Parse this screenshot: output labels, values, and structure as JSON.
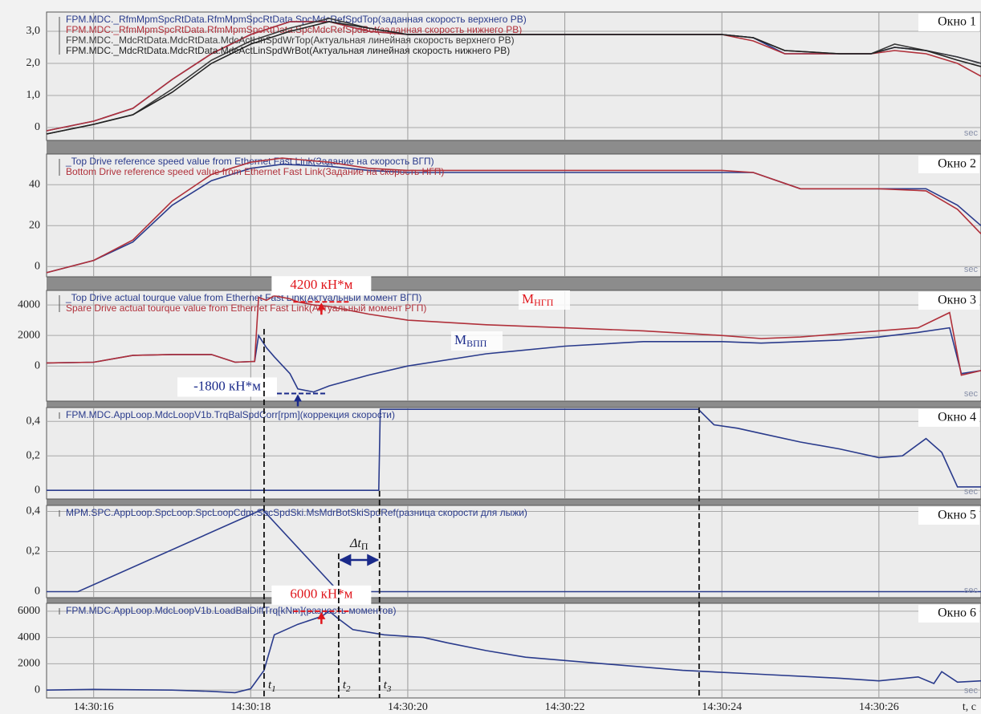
{
  "x_axis": {
    "label": "t, c",
    "xlim": [
      15.4,
      27.3
    ],
    "xticks": [
      {
        "value": 16,
        "label": "14:30:16"
      },
      {
        "value": 18,
        "label": "14:30:18"
      },
      {
        "value": 20,
        "label": "14:30:20"
      },
      {
        "value": 22,
        "label": "14:30:22"
      },
      {
        "value": 24,
        "label": "14:30:24"
      },
      {
        "value": 26,
        "label": "14:30:26"
      }
    ]
  },
  "markers": [
    {
      "x": 18.17,
      "label": "t",
      "sub": "1"
    },
    {
      "x": 19.12,
      "label": "t",
      "sub": "2"
    },
    {
      "x": 19.64,
      "label": "t",
      "sub": "3"
    },
    {
      "x": 23.71
    }
  ],
  "interval": {
    "label": "Δt",
    "sub": "П"
  },
  "chart_data": [
    {
      "type": "line",
      "window": "Окно 1",
      "x_unit": "sec",
      "ylim": [
        -0.4,
        3.6
      ],
      "yticks": [
        0,
        {
          "value": 1,
          "label": "1,0"
        },
        {
          "value": 2,
          "label": "2,0"
        },
        {
          "value": 3,
          "label": "3,0"
        }
      ],
      "x": [
        15.4,
        16,
        16.5,
        17,
        17.5,
        18,
        18.5,
        19,
        19.5,
        20,
        22,
        24,
        24.4,
        24.8,
        25.5,
        25.9,
        26.2,
        26.6,
        27,
        27.3
      ],
      "series": [
        {
          "name": "FPM.MDC._RfmMpmSpcRtData.RfmMpmSpcRtData.SpcMdcRefSpdTop(заданная скорость верхнего РВ)",
          "color": "#2a3b8c",
          "values": [
            -0.1,
            0.2,
            0.6,
            1.5,
            2.3,
            2.9,
            3.3,
            3.3,
            3.0,
            2.9,
            2.9,
            2.9,
            2.8,
            2.3,
            2.3,
            2.3,
            2.5,
            2.4,
            2.2,
            2.0
          ]
        },
        {
          "name": "FPM.MDC._RfmMpmSpcRtData.RfmMpmSpcRtData.SpcMdcRefSpdBot(заданная скорость нижнего РВ)",
          "color": "#b0303a",
          "values": [
            -0.1,
            0.2,
            0.6,
            1.5,
            2.3,
            2.9,
            3.3,
            3.3,
            3.0,
            2.9,
            2.9,
            2.9,
            2.7,
            2.3,
            2.3,
            2.3,
            2.4,
            2.3,
            2.0,
            1.6
          ]
        },
        {
          "name": "FPM.MDC._MdcRtData.MdcRtData.MdcActLinSpdWrTop(Актуальная линейная скорость верхнего РВ)",
          "color": "#3a3a3a",
          "values": [
            -0.2,
            0.1,
            0.4,
            1.2,
            2.1,
            2.7,
            3.1,
            3.4,
            3.1,
            2.9,
            2.9,
            2.9,
            2.8,
            2.4,
            2.3,
            2.3,
            2.6,
            2.4,
            2.2,
            2.0
          ]
        },
        {
          "name": "FPM.MDC._MdcRtData.MdcRtData.MdcActLinSpdWrBot(Актуальная линейная скорость нижнего РВ)",
          "color": "#222222",
          "values": [
            -0.2,
            0.1,
            0.4,
            1.1,
            2.0,
            2.6,
            3.0,
            3.3,
            3.1,
            2.9,
            2.9,
            2.9,
            2.8,
            2.4,
            2.3,
            2.3,
            2.5,
            2.4,
            2.1,
            1.9
          ]
        }
      ]
    },
    {
      "type": "line",
      "window": "Окно 2",
      "x_unit": "sec",
      "ylim": [
        -5,
        55
      ],
      "yticks": [
        0,
        20,
        40
      ],
      "x": [
        15.4,
        16,
        16.5,
        17,
        17.5,
        18,
        18.4,
        19,
        19.5,
        20,
        24,
        24.4,
        25,
        26,
        26.6,
        27,
        27.3
      ],
      "series": [
        {
          "name": "_Top Drive reference speed value from Ethernet Fast Link(Задание на скорость ВГП)",
          "color": "#2a3b8c",
          "values": [
            -3,
            3,
            12,
            30,
            42,
            48,
            50,
            49,
            47,
            46,
            46,
            46,
            38,
            38,
            38,
            30,
            20
          ]
        },
        {
          "name": "Bottom Drive reference speed value from Ethernet Fast Link(Задание на скорость НГП)",
          "color": "#b0303a",
          "values": [
            -3,
            3,
            13,
            32,
            45,
            51,
            53,
            51,
            48,
            47,
            47,
            46,
            38,
            38,
            37,
            28,
            16
          ]
        }
      ]
    },
    {
      "type": "line",
      "window": "Окно 3",
      "x_unit": "sec",
      "ylim": [
        -2300,
        4950
      ],
      "yticks": [
        0,
        2000,
        4000
      ],
      "x": [
        15.4,
        16,
        16.5,
        17,
        17.5,
        17.8,
        18.05,
        18.1,
        18.2,
        18.3,
        18.5,
        18.6,
        18.8,
        19,
        19.5,
        20,
        21,
        22,
        23,
        24,
        24.5,
        25,
        25.5,
        26,
        26.5,
        26.9,
        27.05,
        27.3
      ],
      "series": [
        {
          "name": "_Top Drive actual tourque value from Ethernet Fast Link(Актуальный момент ВГП)",
          "color": "#2a3b8c",
          "values": [
            200,
            250,
            700,
            750,
            750,
            250,
            300,
            2000,
            1200,
            600,
            -500,
            -1500,
            -1700,
            -1300,
            -600,
            0,
            800,
            1300,
            1600,
            1600,
            1500,
            1600,
            1700,
            1900,
            2200,
            2500,
            -500,
            -300
          ]
        },
        {
          "name": "Spare Drive actual tourque value from Ethernet Fast Link(Актуальный момент РГП)",
          "color": "#b0303a",
          "values": [
            200,
            250,
            700,
            750,
            750,
            250,
            300,
            4500,
            4300,
            4600,
            4400,
            4200,
            4000,
            3900,
            3400,
            3000,
            2700,
            2500,
            2300,
            2000,
            1800,
            1900,
            2100,
            2300,
            2500,
            3500,
            -600,
            -300
          ]
        }
      ],
      "annotations": [
        {
          "x": 18.9,
          "value": 4200,
          "label": "4200 кН*м",
          "color": "#e0161c"
        },
        {
          "x": 18.6,
          "value": -1800,
          "label": "-1800 кН*м",
          "color": "#1a2a8a"
        }
      ],
      "curve_labels": [
        {
          "text": "М",
          "sub": "НГП",
          "color": "#e0161c"
        },
        {
          "text": "М",
          "sub": "ВПП",
          "color": "#1a2a8a"
        }
      ]
    },
    {
      "type": "line",
      "window": "Окно 4",
      "x_unit": "sec",
      "ylim": [
        -0.05,
        0.48
      ],
      "yticks": [
        0,
        {
          "value": 0.2,
          "label": "0,2"
        },
        {
          "value": 0.4,
          "label": "0,4"
        }
      ],
      "x": [
        15.4,
        19.63,
        19.65,
        23.7,
        23.9,
        24.2,
        24.5,
        25,
        25.5,
        26,
        26.3,
        26.6,
        26.8,
        27,
        27.3
      ],
      "series": [
        {
          "name": "FPM.MDC.AppLoop.MdcLoopV1b.TrqBalSpdCorr[rpm](коррекция скорости)",
          "color": "#2a3b8c",
          "values": [
            0,
            0,
            0.47,
            0.47,
            0.38,
            0.36,
            0.33,
            0.28,
            0.24,
            0.19,
            0.2,
            0.3,
            0.22,
            0.02,
            0.02
          ]
        }
      ]
    },
    {
      "type": "line",
      "window": "Окно 5",
      "x_unit": "sec",
      "ylim": [
        -0.03,
        0.43
      ],
      "yticks": [
        0,
        {
          "value": 0.2,
          "label": "0,2"
        },
        {
          "value": 0.4,
          "label": "0,4"
        }
      ],
      "x": [
        15.4,
        15.8,
        18.15,
        19.12,
        27.3
      ],
      "series": [
        {
          "name": "MPM.SPC.AppLoop.SpcLoop.SpcLoopCdm.SpcSpdSki.MsMdrBotSkiSpdRef(разница скорости для лыжи)",
          "color": "#2a3b8c",
          "values": [
            0,
            0,
            0.41,
            0,
            0
          ]
        }
      ]
    },
    {
      "type": "line",
      "window": "Окно 6",
      "x_unit": "sec",
      "ylim": [
        -600,
        6600
      ],
      "yticks": [
        0,
        2000,
        4000,
        6000
      ],
      "x": [
        15.4,
        16,
        17,
        17.5,
        17.8,
        18.0,
        18.17,
        18.3,
        18.6,
        18.9,
        19.0,
        19.1,
        19.3,
        19.7,
        20.2,
        20.5,
        21,
        21.5,
        22.5,
        23.5,
        24.5,
        25.5,
        26,
        26.5,
        26.7,
        26.8,
        27,
        27.3
      ],
      "series": [
        {
          "name": "FPM.MDC.AppLoop.MdcLoopV1b.LoadBalDiffTrq[kNm](разность моментов)",
          "color": "#2a3b8c",
          "values": [
            0,
            50,
            0,
            -100,
            -200,
            100,
            1500,
            4200,
            5000,
            5600,
            6000,
            5500,
            4600,
            4200,
            4000,
            3600,
            3000,
            2500,
            2000,
            1500,
            1200,
            900,
            700,
            1000,
            500,
            1400,
            600,
            700
          ]
        }
      ],
      "annotations": [
        {
          "x": 18.9,
          "value": 6000,
          "label": "6000 кН*м",
          "color": "#e0161c"
        }
      ]
    }
  ]
}
